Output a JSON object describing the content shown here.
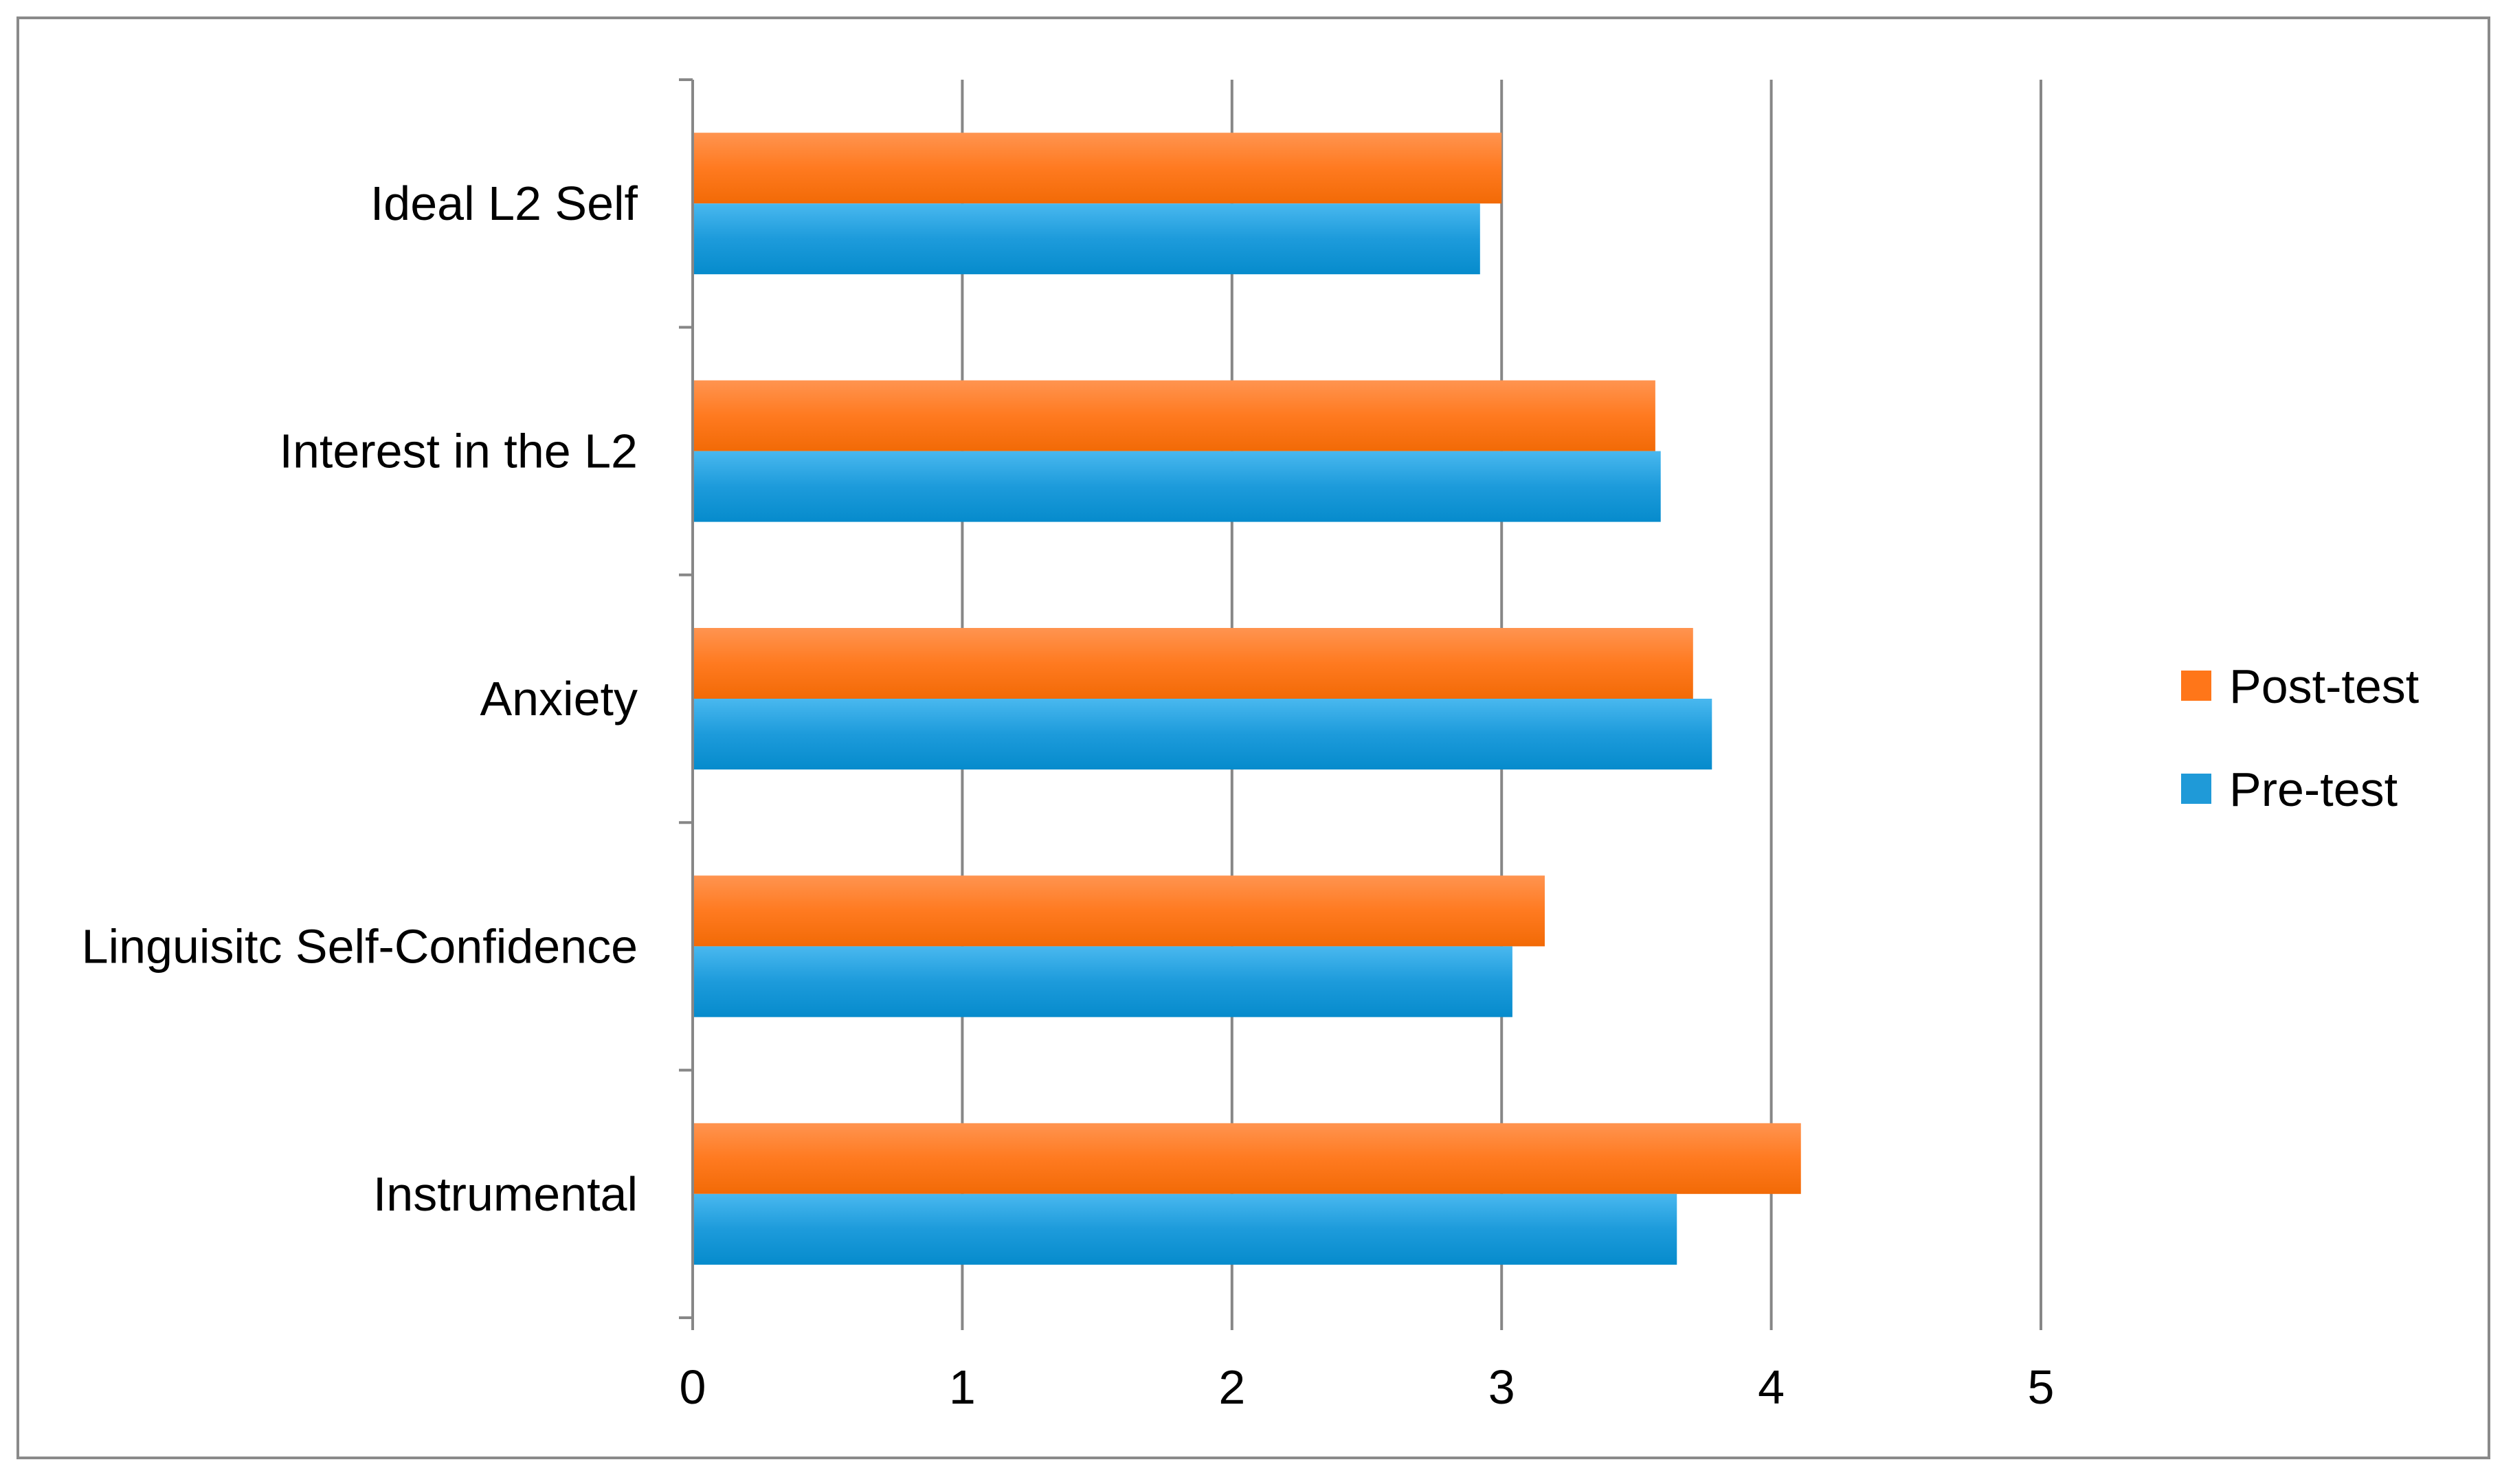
{
  "chart_data": {
    "type": "bar",
    "orientation": "horizontal",
    "categories": [
      "Ideal L2 Self",
      "Interest in the L2",
      "Anxiety",
      "Linguisitc Self-Confidence",
      "Instrumental"
    ],
    "series": [
      {
        "name": "Post-test",
        "values": [
          3.0,
          3.57,
          3.71,
          3.16,
          4.11
        ]
      },
      {
        "name": "Pre-test",
        "values": [
          2.92,
          3.59,
          3.78,
          3.04,
          3.65
        ]
      }
    ],
    "xlim": [
      0,
      5
    ],
    "xticks": [
      "0",
      "1",
      "2",
      "3",
      "4",
      "5"
    ],
    "grid": "vertical major",
    "legend_position": "right",
    "colors": {
      "Post-test": "#ff7619",
      "Pre-test": "#1f9ad8",
      "grid": "#878787",
      "axis": "#878787",
      "frame": "#8a8a8a"
    }
  }
}
